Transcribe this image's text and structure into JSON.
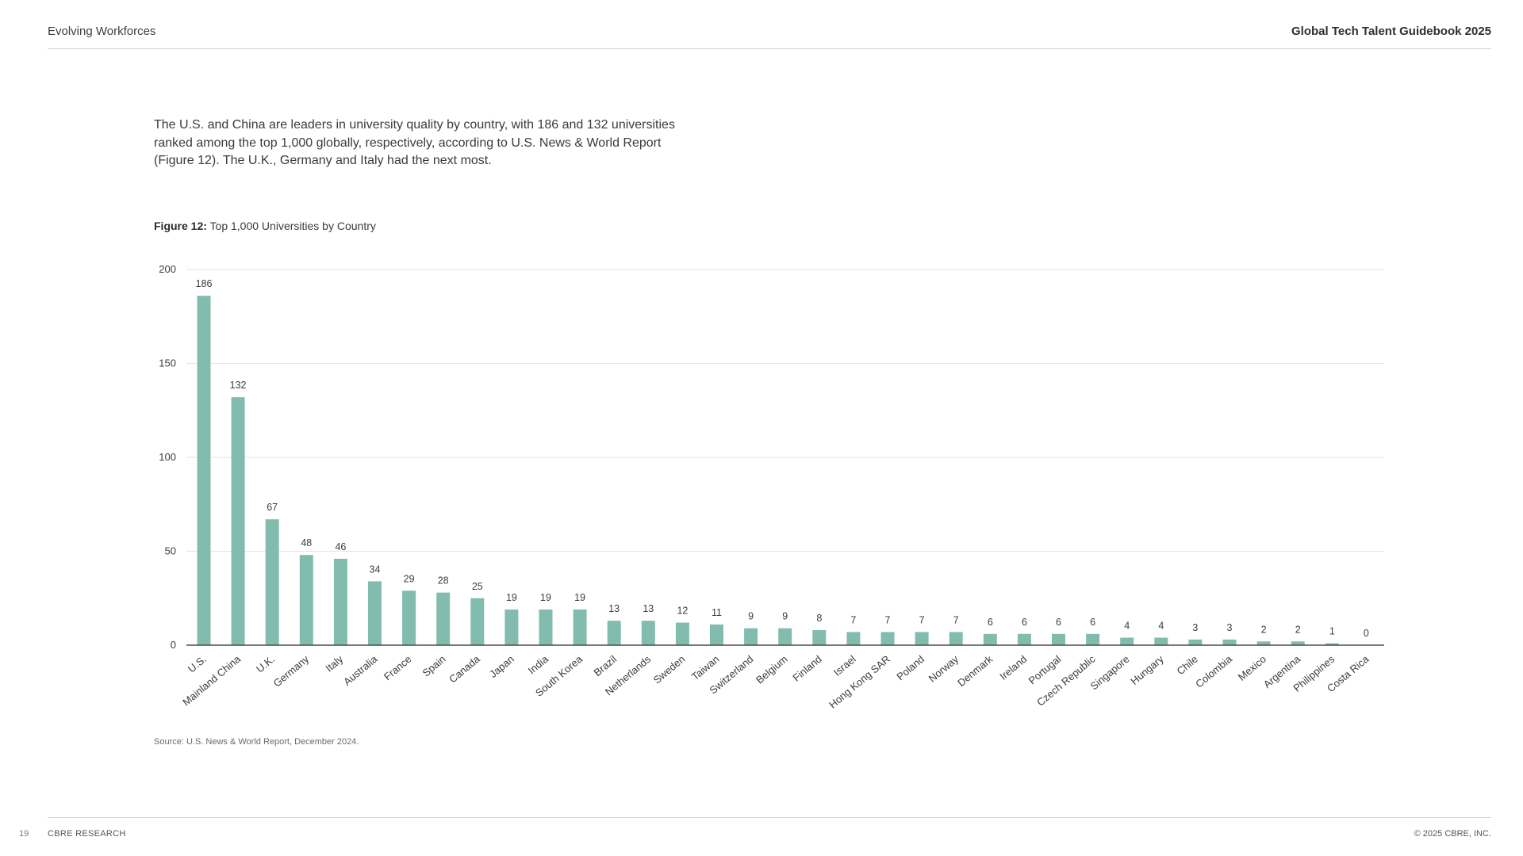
{
  "header": {
    "section": "Evolving Workforces",
    "publication": "Global Tech Talent Guidebook 2025"
  },
  "intro": "The U.S. and China are leaders in university quality by country, with 186 and 132 universities ranked among the top 1,000 globally, respectively, according to U.S. News & World Report (Figure 12). The U.K., Germany and Italy had the next most.",
  "figure": {
    "label": "Figure 12:",
    "caption": "Top 1,000 Universities by Country"
  },
  "source": "Source: U.S. News & World Report, December 2024.",
  "footer": {
    "page": "19",
    "brand": "CBRE RESEARCH",
    "copyright": "© 2025 CBRE, INC."
  },
  "chart_data": {
    "type": "bar",
    "title": "Top 1,000 Universities by Country",
    "xlabel": "",
    "ylabel": "",
    "ylim": [
      0,
      200
    ],
    "yticks": [
      0,
      50,
      100,
      150,
      200
    ],
    "grid": true,
    "bar_color": "#82bcae",
    "categories": [
      "U.S.",
      "Mainland China",
      "U.K.",
      "Germany",
      "Italy",
      "Australia",
      "France",
      "Spain",
      "Canada",
      "Japan",
      "India",
      "South Korea",
      "Brazil",
      "Netherlands",
      "Sweden",
      "Taiwan",
      "Switzerland",
      "Belgium",
      "Finland",
      "Israel",
      "Hong Kong SAR",
      "Poland",
      "Norway",
      "Denmark",
      "Ireland",
      "Portugal",
      "Czech Republic",
      "Singapore",
      "Hungary",
      "Chile",
      "Colombia",
      "Mexico",
      "Argentina",
      "Philippines",
      "Costa Rica"
    ],
    "values": [
      186,
      132,
      67,
      48,
      46,
      34,
      29,
      28,
      25,
      19,
      19,
      19,
      13,
      13,
      12,
      11,
      9,
      9,
      8,
      7,
      7,
      7,
      7,
      6,
      6,
      6,
      6,
      4,
      4,
      3,
      3,
      2,
      2,
      1,
      0
    ]
  }
}
